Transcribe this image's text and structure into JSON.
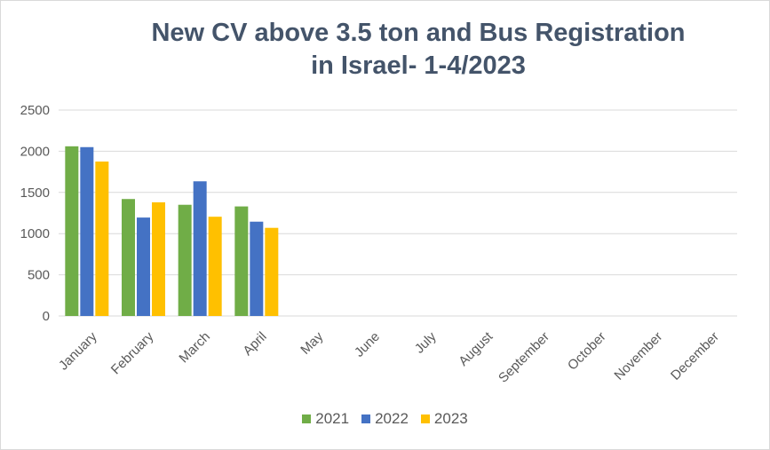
{
  "chart_data": {
    "type": "bar",
    "title_lines": [
      "New CV above 3.5 ton and Bus Registration",
      "in Israel- 1-4/2023"
    ],
    "categories": [
      "January",
      "February",
      "March",
      "April",
      "May",
      "June",
      "July",
      "August",
      "September",
      "October",
      "November",
      "December"
    ],
    "series": [
      {
        "name": "2021",
        "color": "#70ad47",
        "values": [
          2060,
          1420,
          1350,
          1330,
          null,
          null,
          null,
          null,
          null,
          null,
          null,
          null
        ]
      },
      {
        "name": "2022",
        "color": "#4472c4",
        "values": [
          2050,
          1195,
          1635,
          1145,
          null,
          null,
          null,
          null,
          null,
          null,
          null,
          null
        ]
      },
      {
        "name": "2023",
        "color": "#ffc000",
        "values": [
          1875,
          1380,
          1205,
          1070,
          null,
          null,
          null,
          null,
          null,
          null,
          null,
          null
        ]
      }
    ],
    "yticks": [
      0,
      500,
      1000,
      1500,
      2000,
      2500
    ],
    "ylim": [
      0,
      2500
    ],
    "grid": true,
    "legend_position": "bottom"
  }
}
